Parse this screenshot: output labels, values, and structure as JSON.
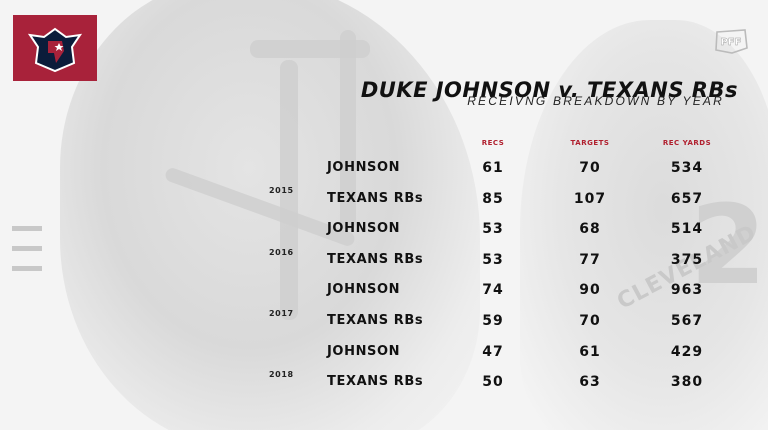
{
  "title": "DUKE JOHNSON v. TEXANS RBs",
  "subtitle": "RECEIVNG BREAKDOWN BY YEAR",
  "columns": {
    "recs": "RECS",
    "targets": "TARGETS",
    "rec_yards": "REC YARDS"
  },
  "brand": {
    "team_color": "#a8223a",
    "header_color": "#b01f2e",
    "team_logo_icon": "texans-logo-icon",
    "pff_logo_icon": "pff-logo-icon"
  },
  "background": {
    "jersey_text": "CLEVELAND"
  },
  "years": [
    {
      "year": "2015",
      "rows": [
        {
          "name": "JOHNSON",
          "recs": "61",
          "targets": "70",
          "rec_yards": "534"
        },
        {
          "name": "TEXANS RBs",
          "recs": "85",
          "targets": "107",
          "rec_yards": "657"
        }
      ]
    },
    {
      "year": "2016",
      "rows": [
        {
          "name": "JOHNSON",
          "recs": "53",
          "targets": "68",
          "rec_yards": "514"
        },
        {
          "name": "TEXANS RBs",
          "recs": "53",
          "targets": "77",
          "rec_yards": "375"
        }
      ]
    },
    {
      "year": "2017",
      "rows": [
        {
          "name": "JOHNSON",
          "recs": "74",
          "targets": "90",
          "rec_yards": "963"
        },
        {
          "name": "TEXANS RBs",
          "recs": "59",
          "targets": "70",
          "rec_yards": "567"
        }
      ]
    },
    {
      "year": "2018",
      "rows": [
        {
          "name": "JOHNSON",
          "recs": "47",
          "targets": "61",
          "rec_yards": "429"
        },
        {
          "name": "TEXANS RBs",
          "recs": "50",
          "targets": "63",
          "rec_yards": "380"
        }
      ]
    }
  ]
}
